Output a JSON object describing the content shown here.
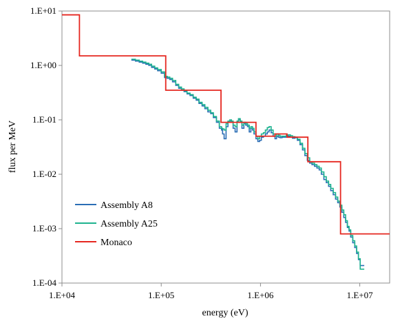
{
  "chart_data": {
    "type": "line",
    "step": true,
    "xscale": "log",
    "yscale": "log",
    "xlim": [
      10000,
      20000000
    ],
    "ylim": [
      0.0001,
      10
    ],
    "xticks": [
      10000,
      100000,
      1000000,
      10000000
    ],
    "xtick_labels": [
      "1.E+04",
      "1.E+05",
      "1.E+06",
      "1.E+07"
    ],
    "yticks": [
      10,
      1,
      0.1,
      0.01,
      0.001,
      0.0001
    ],
    "ytick_labels": [
      "1.E+01",
      "1.E+00",
      "1.E-01",
      "1.E-02",
      "1.E-03",
      "1.E-04"
    ],
    "xlabel": "energy (eV)",
    "ylabel": "flux per MeV",
    "grid": false,
    "legend_position": "lower-left",
    "series": [
      {
        "name": "Assembly A8",
        "color": "#2a6db5",
        "bins": [
          50000,
          55000,
          60000,
          65000,
          70000,
          75000,
          80000,
          86000,
          92000,
          100000,
          108000,
          115000,
          122000,
          130000,
          140000,
          150000,
          160000,
          170000,
          182000,
          195000,
          210000,
          225000,
          240000,
          258000,
          275000,
          295000,
          315000,
          335000,
          360000,
          385000,
          405000,
          415000,
          430000,
          450000,
          470000,
          490000,
          510000,
          530000,
          555000,
          580000,
          600000,
          625000,
          650000,
          680000,
          710000,
          740000,
          770000,
          800000,
          830000,
          860000,
          900000,
          940000,
          980000,
          1020000,
          1070000,
          1120000,
          1170000,
          1220000,
          1280000,
          1340000,
          1400000,
          1450000,
          1510000,
          1570000,
          1650000,
          1730000,
          1820000,
          1900000,
          2000000,
          2100000,
          2220000,
          2350000,
          2500000,
          2650000,
          2800000,
          2960000,
          3130000,
          3300000,
          3500000,
          3700000,
          3900000,
          4100000,
          4350000,
          4600000,
          4850000,
          5100000,
          5400000,
          5700000,
          6000000,
          6300000,
          6600000,
          6900000,
          7200000,
          7500000,
          7800000,
          8100000,
          8500000,
          8900000,
          9300000,
          9700000,
          10100000,
          10600000,
          11100000
        ],
        "values": [
          1.25,
          1.2,
          1.15,
          1.1,
          1.05,
          1.0,
          0.92,
          0.86,
          0.8,
          0.72,
          0.6,
          0.58,
          0.55,
          0.5,
          0.43,
          0.38,
          0.35,
          0.33,
          0.3,
          0.28,
          0.25,
          0.23,
          0.2,
          0.18,
          0.16,
          0.14,
          0.13,
          0.11,
          0.09,
          0.07,
          0.065,
          0.055,
          0.045,
          0.075,
          0.09,
          0.095,
          0.09,
          0.07,
          0.06,
          0.09,
          0.1,
          0.09,
          0.07,
          0.085,
          0.08,
          0.075,
          0.06,
          0.07,
          0.065,
          0.055,
          0.045,
          0.04,
          0.042,
          0.048,
          0.05,
          0.055,
          0.06,
          0.065,
          0.058,
          0.05,
          0.045,
          0.05,
          0.048,
          0.047,
          0.048,
          0.048,
          0.049,
          0.05,
          0.048,
          0.046,
          0.047,
          0.042,
          0.035,
          0.028,
          0.022,
          0.018,
          0.016,
          0.015,
          0.014,
          0.013,
          0.012,
          0.01,
          0.008,
          0.007,
          0.006,
          0.005,
          0.0042,
          0.0035,
          0.003,
          0.0025,
          0.002,
          0.0016,
          0.0013,
          0.00105,
          0.0009,
          0.0007,
          0.00055,
          0.00045,
          0.00035,
          0.00027,
          0.00021,
          0.00021
        ]
      },
      {
        "name": "Assembly A25",
        "color": "#1db28e",
        "bins": [
          50000,
          55000,
          60000,
          65000,
          70000,
          75000,
          80000,
          86000,
          92000,
          100000,
          108000,
          115000,
          122000,
          130000,
          140000,
          150000,
          160000,
          170000,
          182000,
          195000,
          210000,
          225000,
          240000,
          258000,
          275000,
          295000,
          315000,
          335000,
          360000,
          385000,
          405000,
          415000,
          430000,
          450000,
          470000,
          490000,
          510000,
          530000,
          555000,
          580000,
          600000,
          625000,
          650000,
          680000,
          710000,
          740000,
          770000,
          800000,
          830000,
          860000,
          900000,
          940000,
          980000,
          1020000,
          1070000,
          1120000,
          1170000,
          1220000,
          1280000,
          1340000,
          1400000,
          1450000,
          1510000,
          1570000,
          1650000,
          1730000,
          1820000,
          1900000,
          2000000,
          2100000,
          2220000,
          2350000,
          2500000,
          2650000,
          2800000,
          2960000,
          3130000,
          3300000,
          3500000,
          3700000,
          3900000,
          4100000,
          4350000,
          4600000,
          4850000,
          5100000,
          5400000,
          5700000,
          6000000,
          6300000,
          6600000,
          6900000,
          7200000,
          7500000,
          7800000,
          8100000,
          8500000,
          8900000,
          9300000,
          9700000,
          10100000,
          10600000,
          11100000
        ],
        "values": [
          1.3,
          1.25,
          1.2,
          1.15,
          1.1,
          1.05,
          0.97,
          0.9,
          0.84,
          0.76,
          0.63,
          0.61,
          0.58,
          0.53,
          0.45,
          0.4,
          0.37,
          0.34,
          0.31,
          0.29,
          0.26,
          0.24,
          0.21,
          0.19,
          0.17,
          0.15,
          0.135,
          0.115,
          0.095,
          0.075,
          0.07,
          0.068,
          0.065,
          0.085,
          0.095,
          0.1,
          0.095,
          0.08,
          0.075,
          0.095,
          0.105,
          0.095,
          0.08,
          0.09,
          0.085,
          0.08,
          0.07,
          0.075,
          0.07,
          0.06,
          0.05,
          0.045,
          0.05,
          0.055,
          0.058,
          0.065,
          0.072,
          0.075,
          0.065,
          0.055,
          0.05,
          0.055,
          0.052,
          0.05,
          0.05,
          0.05,
          0.052,
          0.053,
          0.051,
          0.049,
          0.048,
          0.044,
          0.037,
          0.03,
          0.024,
          0.02,
          0.017,
          0.016,
          0.015,
          0.014,
          0.013,
          0.011,
          0.009,
          0.0075,
          0.0065,
          0.0055,
          0.0046,
          0.0038,
          0.0032,
          0.0027,
          0.0022,
          0.0018,
          0.0014,
          0.0011,
          0.00095,
          0.00075,
          0.0006,
          0.00048,
          0.00037,
          0.00028,
          0.00018,
          0.00018
        ]
      },
      {
        "name": "Monaco",
        "color": "#e5261f",
        "bins": [
          10000,
          15000,
          111000,
          400000,
          900000,
          1400000,
          1850000,
          3000000,
          6400000,
          20000000
        ],
        "values": [
          8.5,
          1.5,
          0.35,
          0.09,
          0.05,
          0.055,
          0.048,
          0.017,
          0.0008,
          0.0008
        ]
      }
    ]
  }
}
